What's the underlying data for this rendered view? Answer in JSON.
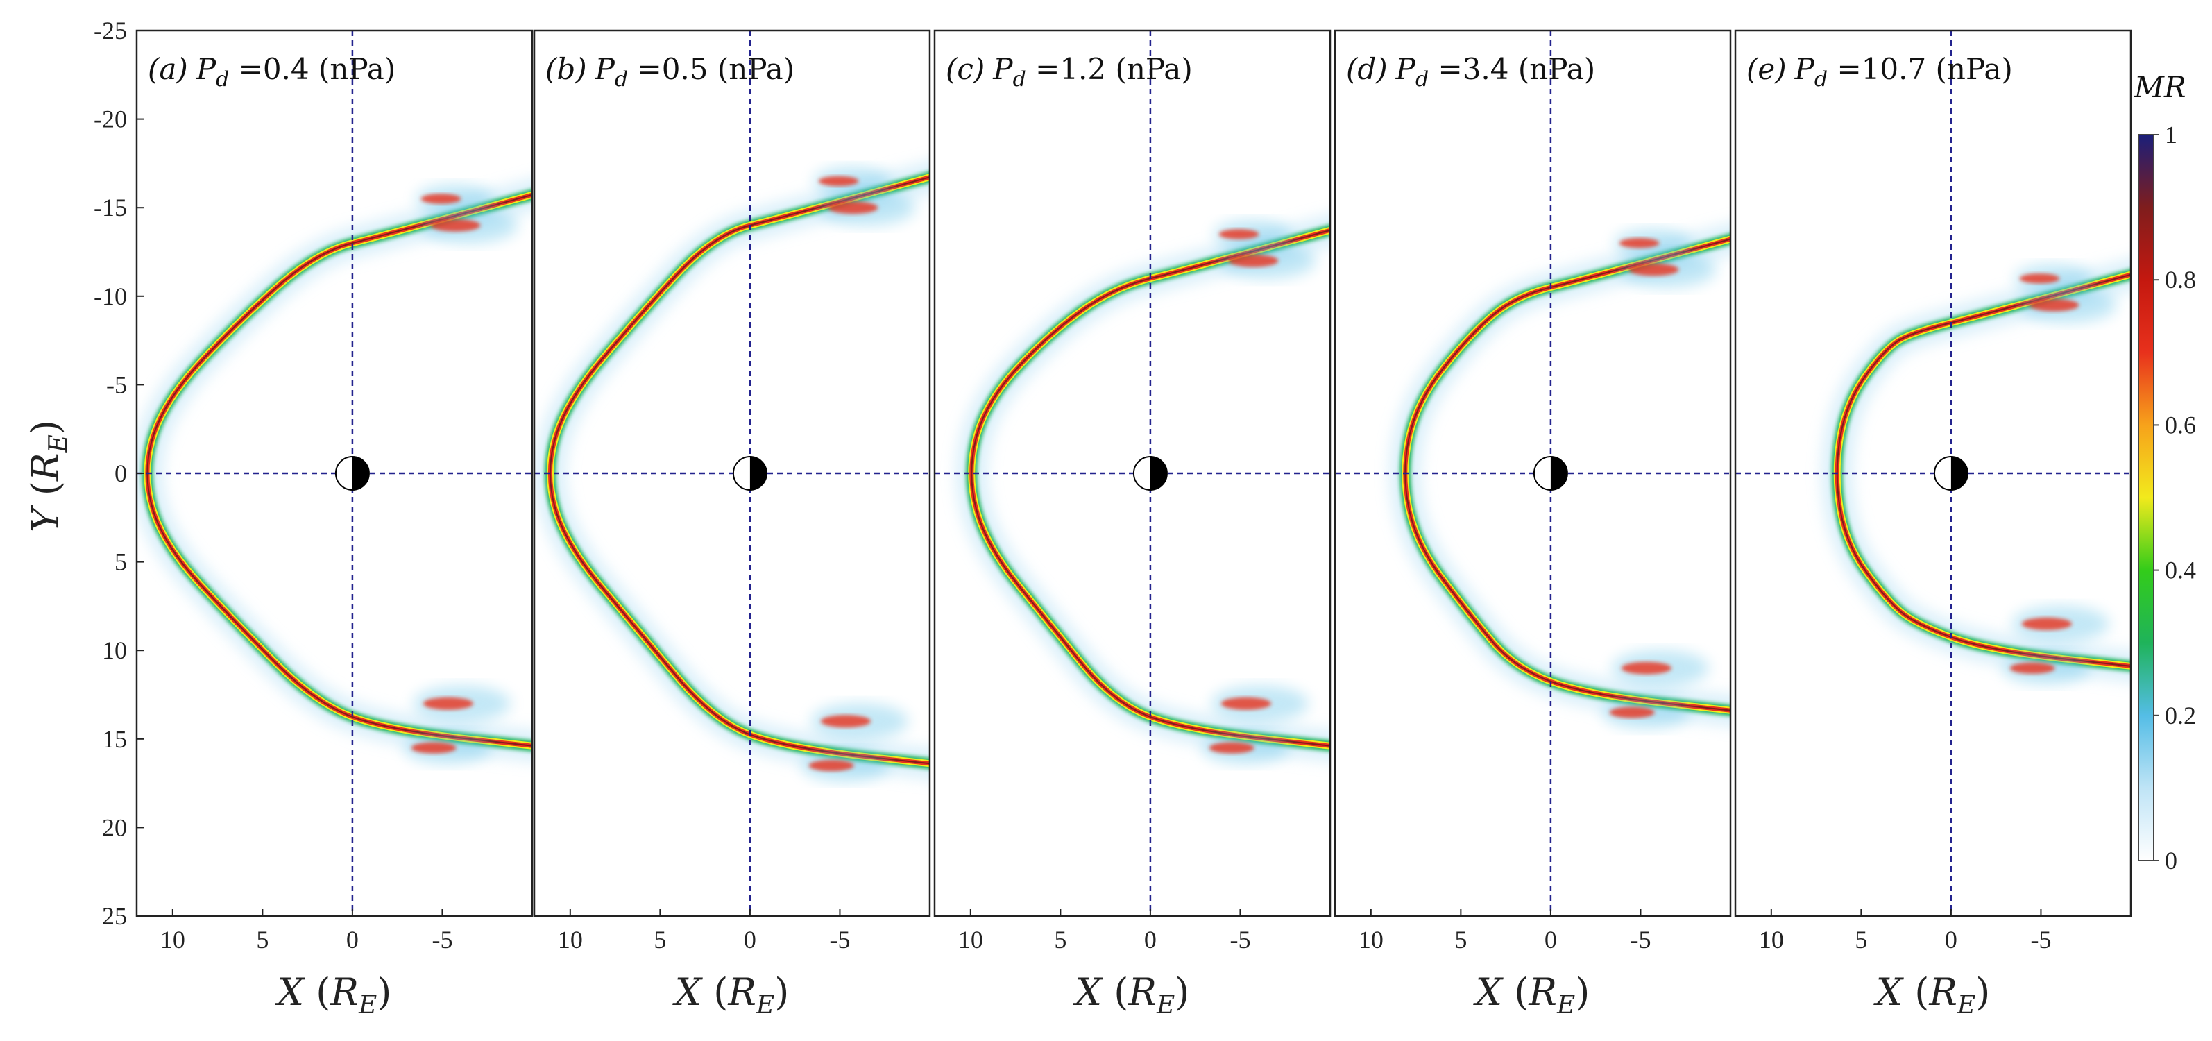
{
  "chart_data": {
    "type": "heatmap",
    "title": "",
    "xlabel": "X (R_E)",
    "ylabel": "Y (R_E)",
    "xlabel_parts": {
      "var": "X",
      "open": " (",
      "R": "R",
      "sub": "E",
      "close": ")"
    },
    "ylabel_parts": {
      "var": "Y",
      "open": " (",
      "R": "R",
      "sub": "E",
      "close": ")"
    },
    "xlim": [
      12,
      -10
    ],
    "ylim": [
      -25,
      25
    ],
    "x_ticks": [
      10,
      5,
      0,
      -5
    ],
    "x_tick_labels": [
      "10",
      "5",
      "0",
      "-5"
    ],
    "y_ticks": [
      -25,
      -20,
      -15,
      -10,
      -5,
      0,
      5,
      10,
      15,
      20,
      25
    ],
    "y_tick_labels": [
      "-25",
      "-20",
      "-15",
      "-10",
      "-5",
      "0",
      "5",
      "10",
      "15",
      "20",
      "25"
    ],
    "colorbar": {
      "title": "MR",
      "range": [
        0,
        1
      ],
      "ticks": [
        0,
        0.2,
        0.4,
        0.6,
        0.8,
        1
      ],
      "tick_labels": [
        "0",
        "0.2",
        "0.4",
        "0.6",
        "0.8",
        "1"
      ],
      "colormap": [
        "#ffffff",
        "#bfe4f6",
        "#54bde6",
        "#1fb35a",
        "#33cc1a",
        "#f2ea1c",
        "#f7a21b",
        "#e8311c",
        "#c4180f",
        "#7f1d1d",
        "#1b1f7a"
      ]
    },
    "panels": [
      {
        "label": "(a)",
        "symbol": "P",
        "sub": "d",
        "eq": " =0.4 (nPa)",
        "pressure_nPa": 0.4,
        "subsolar_x": 11.7,
        "flank_y_left": -14,
        "flank_y_right": 13
      },
      {
        "label": "(b)",
        "symbol": "P",
        "sub": "d",
        "eq": " =0.5 (nPa)",
        "pressure_nPa": 0.5,
        "subsolar_x": 11.4,
        "flank_y_left": -15,
        "flank_y_right": 14
      },
      {
        "label": "(c)",
        "symbol": "P",
        "sub": "d",
        "eq": " =1.2 (nPa)",
        "pressure_nPa": 1.2,
        "subsolar_x": 10.2,
        "flank_y_left": -12,
        "flank_y_right": 13
      },
      {
        "label": "(d)",
        "symbol": "P",
        "sub": "d",
        "eq": " =3.4 (nPa)",
        "pressure_nPa": 3.4,
        "subsolar_x": 8.3,
        "flank_y_left": -11.5,
        "flank_y_right": 11
      },
      {
        "label": "(e)",
        "symbol": "P",
        "sub": "d",
        "eq": " =10.7 (nPa)",
        "pressure_nPa": 10.7,
        "subsolar_x": 6.5,
        "flank_y_left": -9.5,
        "flank_y_right": 8.5
      }
    ]
  }
}
